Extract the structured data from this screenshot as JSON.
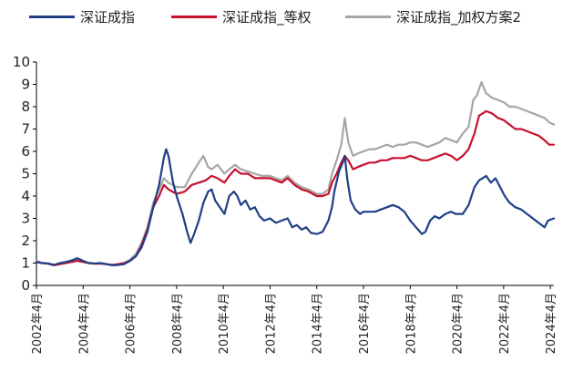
{
  "chart_data": {
    "type": "line",
    "title": "",
    "xlabel": "",
    "ylabel": "",
    "ylim": [
      0,
      10
    ],
    "yticks": [
      "0",
      "1",
      "2",
      "3",
      "4",
      "5",
      "6",
      "7",
      "8",
      "9",
      "10"
    ],
    "xlim": [
      2002.25,
      2024.4
    ],
    "xticks": [
      {
        "x": 2002.25,
        "label": "2002年4月"
      },
      {
        "x": 2004.25,
        "label": "2004年4月"
      },
      {
        "x": 2006.25,
        "label": "2006年4月"
      },
      {
        "x": 2008.25,
        "label": "2008年4月"
      },
      {
        "x": 2010.25,
        "label": "2010年4月"
      },
      {
        "x": 2012.25,
        "label": "2012年4月"
      },
      {
        "x": 2014.25,
        "label": "2014年4月"
      },
      {
        "x": 2016.25,
        "label": "2016年4月"
      },
      {
        "x": 2018.25,
        "label": "2018年4月"
      },
      {
        "x": 2020.25,
        "label": "2020年4月"
      },
      {
        "x": 2022.25,
        "label": "2022年4月"
      },
      {
        "x": 2024.25,
        "label": "2024年4月"
      }
    ],
    "grid": false,
    "legend_position": "top",
    "series": [
      {
        "name": "深证成指",
        "color": "#1f3f86",
        "x": [
          2002.25,
          2002.5,
          2002.75,
          2003.0,
          2003.25,
          2003.5,
          2003.75,
          2004.0,
          2004.25,
          2004.5,
          2004.75,
          2005.0,
          2005.25,
          2005.5,
          2005.75,
          2006.0,
          2006.25,
          2006.5,
          2006.75,
          2007.0,
          2007.25,
          2007.5,
          2007.7,
          2007.8,
          2007.9,
          2008.1,
          2008.25,
          2008.5,
          2008.7,
          2008.85,
          2009.0,
          2009.2,
          2009.4,
          2009.6,
          2009.75,
          2009.9,
          2010.1,
          2010.3,
          2010.5,
          2010.7,
          2010.85,
          2011.0,
          2011.2,
          2011.4,
          2011.6,
          2011.8,
          2012.0,
          2012.25,
          2012.5,
          2012.75,
          2013.0,
          2013.2,
          2013.4,
          2013.6,
          2013.8,
          2014.0,
          2014.25,
          2014.5,
          2014.75,
          2014.9,
          2015.0,
          2015.2,
          2015.4,
          2015.45,
          2015.55,
          2015.7,
          2015.9,
          2016.1,
          2016.25,
          2016.5,
          2016.75,
          2017.0,
          2017.25,
          2017.5,
          2017.75,
          2018.0,
          2018.25,
          2018.5,
          2018.75,
          2018.9,
          2019.1,
          2019.3,
          2019.5,
          2019.75,
          2020.0,
          2020.2,
          2020.5,
          2020.75,
          2021.0,
          2021.2,
          2021.5,
          2021.7,
          2021.9,
          2022.1,
          2022.3,
          2022.5,
          2022.75,
          2023.0,
          2023.25,
          2023.5,
          2023.75,
          2024.0,
          2024.15,
          2024.4
        ],
        "y": [
          1.05,
          1.0,
          0.98,
          0.92,
          1.0,
          1.05,
          1.12,
          1.22,
          1.1,
          1.0,
          0.98,
          1.0,
          0.95,
          0.9,
          0.92,
          0.95,
          1.1,
          1.3,
          1.7,
          2.4,
          3.5,
          4.5,
          5.7,
          6.1,
          5.8,
          4.6,
          4.0,
          3.2,
          2.4,
          1.9,
          2.3,
          2.9,
          3.7,
          4.2,
          4.3,
          3.8,
          3.5,
          3.2,
          4.0,
          4.2,
          4.0,
          3.6,
          3.8,
          3.4,
          3.5,
          3.1,
          2.9,
          3.0,
          2.8,
          2.9,
          3.0,
          2.6,
          2.7,
          2.5,
          2.6,
          2.35,
          2.3,
          2.4,
          2.9,
          3.5,
          4.2,
          5.1,
          5.6,
          5.8,
          4.8,
          3.8,
          3.4,
          3.2,
          3.3,
          3.3,
          3.3,
          3.4,
          3.5,
          3.6,
          3.5,
          3.3,
          2.9,
          2.6,
          2.3,
          2.4,
          2.9,
          3.1,
          3.0,
          3.2,
          3.3,
          3.2,
          3.2,
          3.6,
          4.4,
          4.7,
          4.9,
          4.6,
          4.8,
          4.4,
          4.0,
          3.7,
          3.5,
          3.4,
          3.2,
          3.0,
          2.8,
          2.6,
          2.9,
          3.0
        ]
      },
      {
        "name": "深证成指_等权",
        "color": "#c8102e",
        "x": [
          2002.25,
          2002.5,
          2002.75,
          2003.0,
          2003.25,
          2003.5,
          2003.75,
          2004.0,
          2004.25,
          2004.5,
          2004.75,
          2005.0,
          2005.25,
          2005.5,
          2005.75,
          2006.0,
          2006.25,
          2006.5,
          2006.75,
          2007.0,
          2007.25,
          2007.5,
          2007.7,
          2007.9,
          2008.25,
          2008.6,
          2008.9,
          2009.2,
          2009.5,
          2009.75,
          2010.0,
          2010.3,
          2010.5,
          2010.75,
          2011.0,
          2011.3,
          2011.6,
          2011.9,
          2012.25,
          2012.5,
          2012.75,
          2013.0,
          2013.3,
          2013.6,
          2013.9,
          2014.25,
          2014.5,
          2014.75,
          2014.9,
          2015.1,
          2015.3,
          2015.45,
          2015.6,
          2015.8,
          2016.0,
          2016.25,
          2016.5,
          2016.75,
          2017.0,
          2017.25,
          2017.5,
          2017.75,
          2018.0,
          2018.25,
          2018.5,
          2018.75,
          2019.0,
          2019.25,
          2019.5,
          2019.75,
          2020.0,
          2020.25,
          2020.5,
          2020.75,
          2021.0,
          2021.2,
          2021.5,
          2021.75,
          2022.0,
          2022.25,
          2022.5,
          2022.75,
          2023.0,
          2023.25,
          2023.5,
          2023.75,
          2024.0,
          2024.2,
          2024.4
        ],
        "y": [
          1.05,
          1.0,
          0.97,
          0.9,
          0.95,
          1.0,
          1.05,
          1.1,
          1.05,
          1.0,
          0.97,
          0.98,
          0.95,
          0.92,
          0.95,
          1.0,
          1.1,
          1.3,
          1.8,
          2.5,
          3.5,
          4.0,
          4.5,
          4.3,
          4.1,
          4.2,
          4.5,
          4.6,
          4.7,
          4.9,
          4.8,
          4.6,
          4.9,
          5.2,
          5.0,
          5.0,
          4.8,
          4.8,
          4.8,
          4.7,
          4.6,
          4.8,
          4.5,
          4.3,
          4.2,
          4.0,
          4.0,
          4.1,
          4.6,
          5.0,
          5.5,
          5.8,
          5.6,
          5.2,
          5.3,
          5.4,
          5.5,
          5.5,
          5.6,
          5.6,
          5.7,
          5.7,
          5.7,
          5.8,
          5.7,
          5.6,
          5.6,
          5.7,
          5.8,
          5.9,
          5.8,
          5.6,
          5.8,
          6.1,
          6.8,
          7.6,
          7.8,
          7.7,
          7.5,
          7.4,
          7.2,
          7.0,
          7.0,
          6.9,
          6.8,
          6.7,
          6.5,
          6.3,
          6.3
        ]
      },
      {
        "name": "深证成指_加权方案2",
        "color": "#a6a6a6",
        "x": [
          2002.25,
          2002.5,
          2002.75,
          2003.0,
          2003.25,
          2003.5,
          2003.75,
          2004.0,
          2004.25,
          2004.5,
          2004.75,
          2005.0,
          2005.25,
          2005.5,
          2005.75,
          2006.0,
          2006.25,
          2006.5,
          2006.75,
          2007.0,
          2007.25,
          2007.5,
          2007.7,
          2007.9,
          2008.25,
          2008.6,
          2008.9,
          2009.2,
          2009.4,
          2009.6,
          2009.75,
          2010.0,
          2010.3,
          2010.5,
          2010.75,
          2011.0,
          2011.3,
          2011.6,
          2011.9,
          2012.25,
          2012.5,
          2012.75,
          2013.0,
          2013.3,
          2013.6,
          2013.9,
          2014.25,
          2014.5,
          2014.75,
          2014.9,
          2015.1,
          2015.3,
          2015.45,
          2015.6,
          2015.8,
          2016.0,
          2016.25,
          2016.5,
          2016.75,
          2017.0,
          2017.25,
          2017.5,
          2017.75,
          2018.0,
          2018.25,
          2018.5,
          2018.75,
          2019.0,
          2019.25,
          2019.5,
          2019.75,
          2020.0,
          2020.25,
          2020.5,
          2020.75,
          2020.95,
          2021.1,
          2021.3,
          2021.5,
          2021.75,
          2022.0,
          2022.25,
          2022.5,
          2022.75,
          2023.0,
          2023.25,
          2023.5,
          2023.75,
          2024.0,
          2024.2,
          2024.4
        ],
        "y": [
          1.1,
          1.0,
          0.98,
          0.92,
          0.98,
          1.02,
          1.08,
          1.15,
          1.08,
          1.0,
          0.98,
          1.0,
          0.95,
          0.92,
          0.95,
          1.0,
          1.15,
          1.4,
          1.9,
          2.6,
          3.7,
          4.3,
          4.8,
          4.6,
          4.4,
          4.4,
          5.0,
          5.5,
          5.8,
          5.3,
          5.2,
          5.4,
          5.0,
          5.2,
          5.4,
          5.2,
          5.1,
          5.0,
          4.9,
          4.9,
          4.8,
          4.7,
          4.9,
          4.6,
          4.4,
          4.3,
          4.1,
          4.1,
          4.3,
          5.0,
          5.6,
          6.3,
          7.5,
          6.4,
          5.8,
          5.9,
          6.0,
          6.1,
          6.1,
          6.2,
          6.3,
          6.2,
          6.3,
          6.3,
          6.4,
          6.4,
          6.3,
          6.2,
          6.3,
          6.4,
          6.6,
          6.5,
          6.4,
          6.8,
          7.1,
          8.3,
          8.5,
          9.1,
          8.6,
          8.4,
          8.3,
          8.2,
          8.0,
          8.0,
          7.9,
          7.8,
          7.7,
          7.6,
          7.5,
          7.3,
          7.2
        ]
      }
    ]
  }
}
